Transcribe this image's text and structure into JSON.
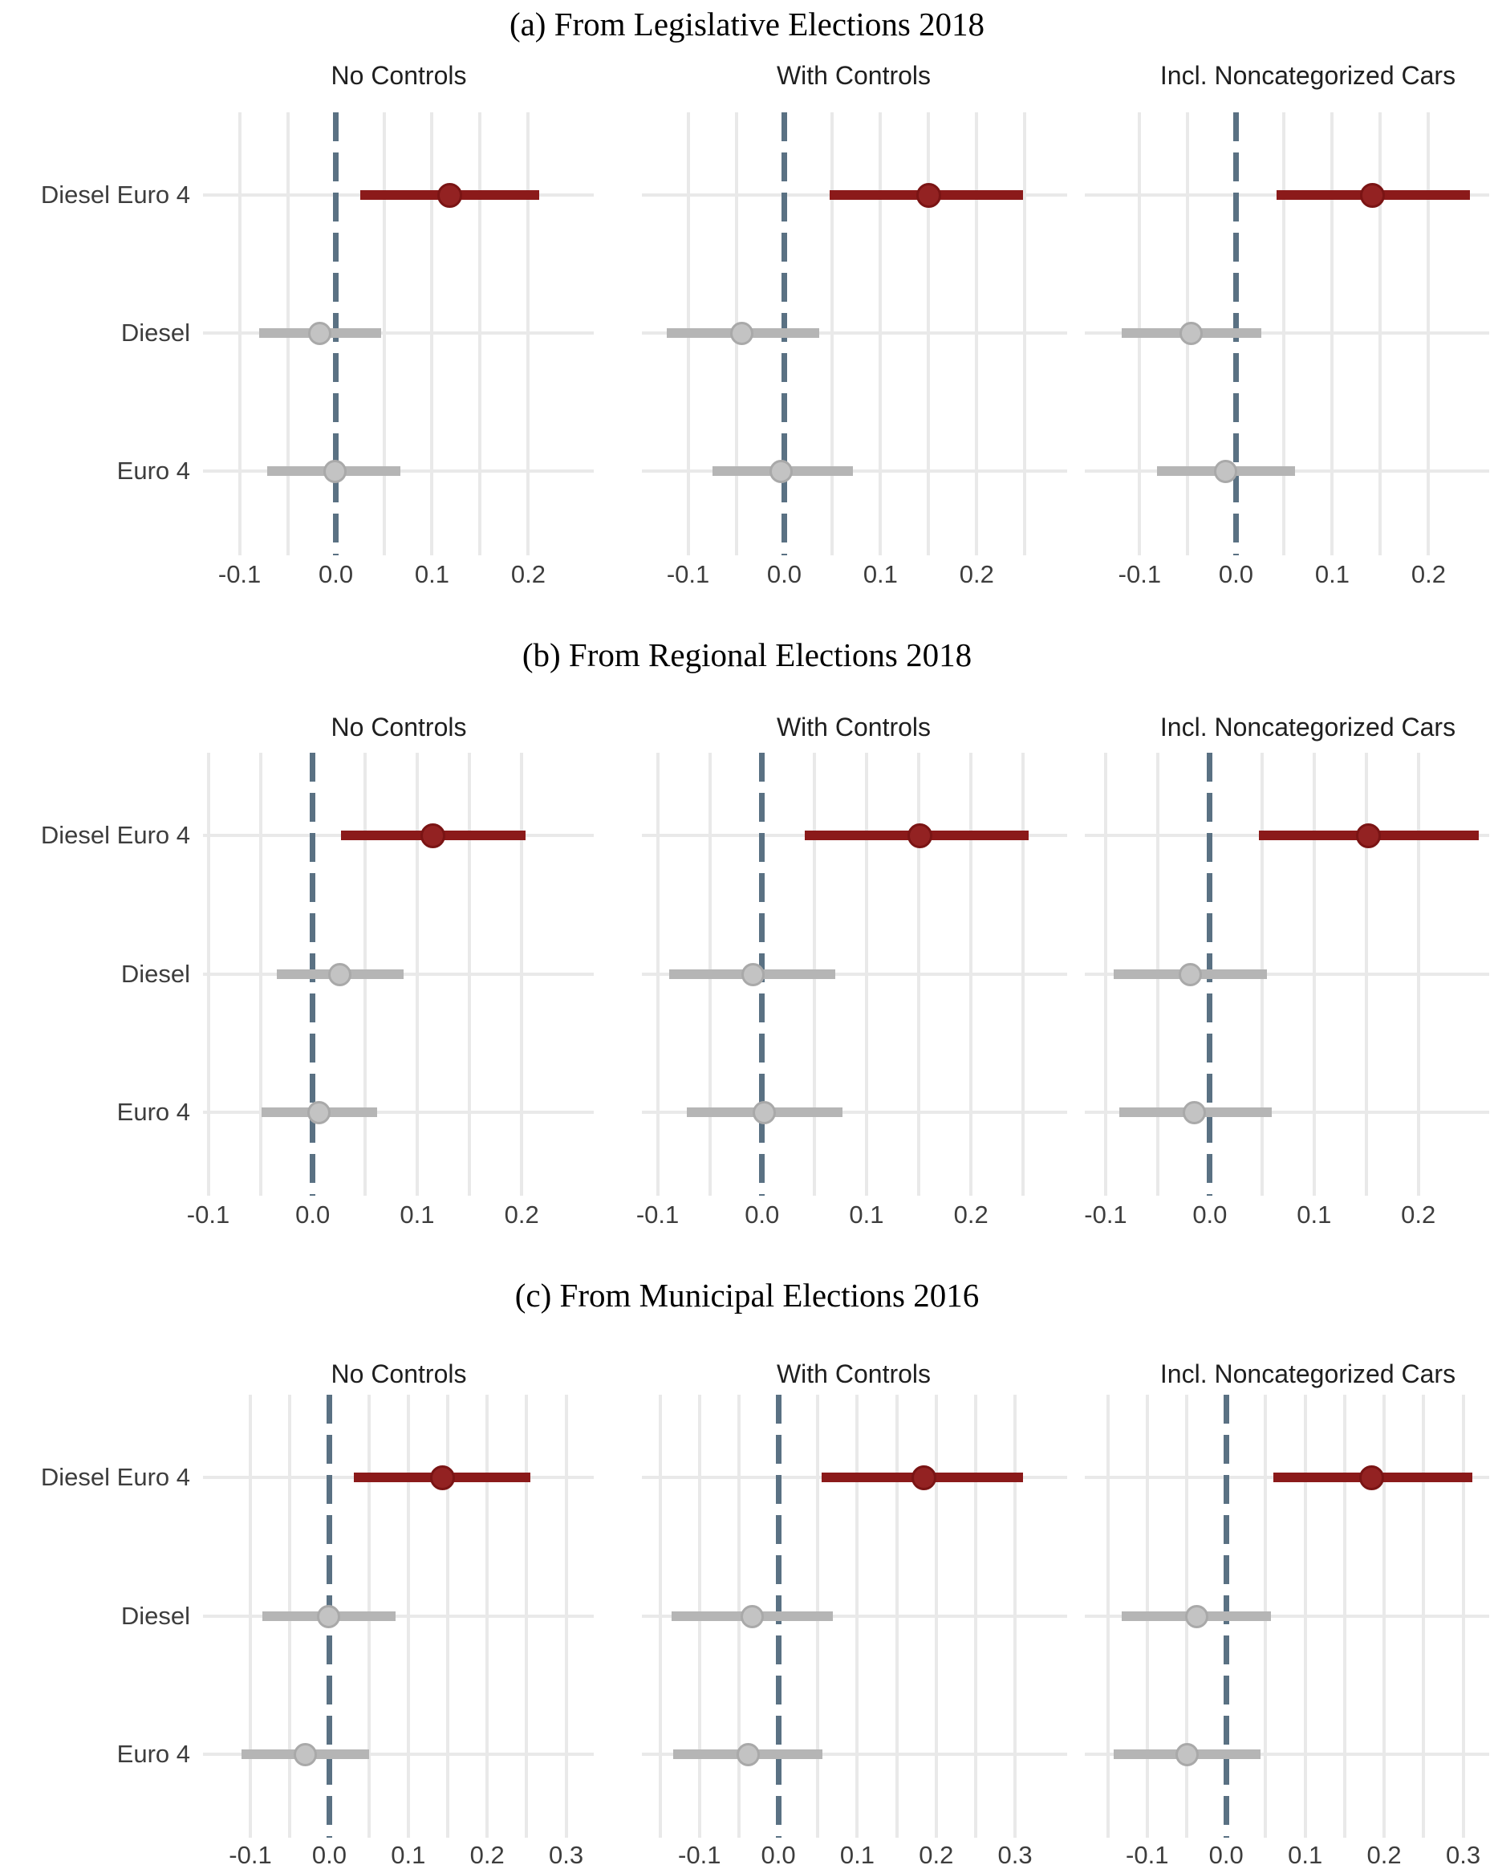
{
  "figure_title_prefixes": [
    "(a)",
    "(b)",
    "(c)"
  ],
  "categories": [
    "Diesel Euro 4",
    "Diesel",
    "Euro 4"
  ],
  "facet_headers": [
    "No Controls",
    "With Controls",
    "Incl. Noncategorized Cars"
  ],
  "colors": {
    "significant": "#8B1A1A",
    "significant_point": "#932222",
    "significant_point_border": "#7A1414",
    "nonsignificant": "#B5B5B5",
    "nonsignificant_point": "#C3C3C3",
    "nonsignificant_point_border": "#A9A9A9",
    "zero_line": "#5A7183",
    "gridline": "#E9E9E9",
    "title_text": "#000000",
    "axis_text": "#3D3D3D",
    "header_text": "#1F1F1F",
    "background": "#FFFFFF"
  },
  "chart_data": [
    {
      "type": "scatter",
      "subtype": "coefficient-forest",
      "title": "(a) From Legislative Elections 2018",
      "categories": [
        "Diesel Euro 4",
        "Diesel",
        "Euro 4"
      ],
      "x_ticks": [
        -0.1,
        0.0,
        0.1,
        0.2
      ],
      "x_tick_labels": [
        "-0.1",
        "0.0",
        "0.1",
        "0.2"
      ],
      "grid": true,
      "legend": "none",
      "zero_reference_line": 0.0,
      "subplots": [
        {
          "header": "No Controls",
          "xlim": [
            -0.138,
            0.268
          ],
          "series": [
            {
              "term": "Diesel Euro 4",
              "estimate": 0.118,
              "ci_low": 0.025,
              "ci_high": 0.211,
              "significant": true
            },
            {
              "term": "Diesel",
              "estimate": -0.017,
              "ci_low": -0.08,
              "ci_high": 0.047,
              "significant": false
            },
            {
              "term": "Euro 4",
              "estimate": -0.001,
              "ci_low": -0.071,
              "ci_high": 0.067,
              "significant": false
            }
          ]
        },
        {
          "header": "With Controls",
          "xlim": [
            -0.148,
            0.294
          ],
          "series": [
            {
              "term": "Diesel Euro 4",
              "estimate": 0.15,
              "ci_low": 0.047,
              "ci_high": 0.248,
              "significant": true
            },
            {
              "term": "Diesel",
              "estimate": -0.044,
              "ci_low": -0.122,
              "ci_high": 0.036,
              "significant": false
            },
            {
              "term": "Euro 4",
              "estimate": -0.003,
              "ci_low": -0.075,
              "ci_high": 0.071,
              "significant": false
            }
          ]
        },
        {
          "header": "Incl. Noncategorized Cars",
          "xlim": [
            -0.157,
            0.263
          ],
          "series": [
            {
              "term": "Diesel Euro 4",
              "estimate": 0.142,
              "ci_low": 0.042,
              "ci_high": 0.243,
              "significant": true
            },
            {
              "term": "Diesel",
              "estimate": -0.047,
              "ci_low": -0.119,
              "ci_high": 0.026,
              "significant": false
            },
            {
              "term": "Euro 4",
              "estimate": -0.011,
              "ci_low": -0.082,
              "ci_high": 0.061,
              "significant": false
            }
          ]
        }
      ]
    },
    {
      "type": "scatter",
      "subtype": "coefficient-forest",
      "title": "(b) From Regional Elections 2018",
      "categories": [
        "Diesel Euro 4",
        "Diesel",
        "Euro 4"
      ],
      "x_ticks": [
        -0.1,
        0.0,
        0.1,
        0.2
      ],
      "x_tick_labels": [
        "-0.1",
        "0.0",
        "0.1",
        "0.2"
      ],
      "grid": true,
      "legend": "none",
      "zero_reference_line": 0.0,
      "subplots": [
        {
          "header": "No Controls",
          "xlim": [
            -0.105,
            0.269
          ],
          "series": [
            {
              "term": "Diesel Euro 4",
              "estimate": 0.115,
              "ci_low": 0.027,
              "ci_high": 0.204,
              "significant": true
            },
            {
              "term": "Diesel",
              "estimate": 0.026,
              "ci_low": -0.034,
              "ci_high": 0.087,
              "significant": false
            },
            {
              "term": "Euro 4",
              "estimate": 0.006,
              "ci_low": -0.049,
              "ci_high": 0.062,
              "significant": false
            }
          ]
        },
        {
          "header": "With Controls",
          "xlim": [
            -0.115,
            0.292
          ],
          "series": [
            {
              "term": "Diesel Euro 4",
              "estimate": 0.151,
              "ci_low": 0.041,
              "ci_high": 0.255,
              "significant": true
            },
            {
              "term": "Diesel",
              "estimate": -0.009,
              "ci_low": -0.089,
              "ci_high": 0.07,
              "significant": false
            },
            {
              "term": "Euro 4",
              "estimate": 0.002,
              "ci_low": -0.072,
              "ci_high": 0.077,
              "significant": false
            }
          ]
        },
        {
          "header": "Incl. Noncategorized Cars",
          "xlim": [
            -0.12,
            0.268
          ],
          "series": [
            {
              "term": "Diesel Euro 4",
              "estimate": 0.152,
              "ci_low": 0.047,
              "ci_high": 0.258,
              "significant": true
            },
            {
              "term": "Diesel",
              "estimate": -0.019,
              "ci_low": -0.092,
              "ci_high": 0.055,
              "significant": false
            },
            {
              "term": "Euro 4",
              "estimate": -0.015,
              "ci_low": -0.087,
              "ci_high": 0.059,
              "significant": false
            }
          ]
        }
      ]
    },
    {
      "type": "scatter",
      "subtype": "coefficient-forest",
      "title": "(c) From Municipal Elections 2016",
      "categories": [
        "Diesel Euro 4",
        "Diesel",
        "Euro 4"
      ],
      "x_ticks": [
        -0.1,
        0.0,
        0.1,
        0.2,
        0.3
      ],
      "x_tick_labels": [
        "-0.1",
        "0.0",
        "0.1",
        "0.2",
        "0.3"
      ],
      "grid": true,
      "legend": "none",
      "zero_reference_line": 0.0,
      "subplots": [
        {
          "header": "No Controls",
          "xlim": [
            -0.16,
            0.335
          ],
          "series": [
            {
              "term": "Diesel Euro 4",
              "estimate": 0.143,
              "ci_low": 0.031,
              "ci_high": 0.255,
              "significant": true
            },
            {
              "term": "Diesel",
              "estimate": -0.001,
              "ci_low": -0.085,
              "ci_high": 0.084,
              "significant": false
            },
            {
              "term": "Euro 4",
              "estimate": -0.03,
              "ci_low": -0.111,
              "ci_high": 0.05,
              "significant": false
            }
          ]
        },
        {
          "header": "With Controls",
          "xlim": [
            -0.173,
            0.366
          ],
          "series": [
            {
              "term": "Diesel Euro 4",
              "estimate": 0.184,
              "ci_low": 0.055,
              "ci_high": 0.31,
              "significant": true
            },
            {
              "term": "Diesel",
              "estimate": -0.033,
              "ci_low": -0.135,
              "ci_high": 0.069,
              "significant": false
            },
            {
              "term": "Euro 4",
              "estimate": -0.038,
              "ci_low": -0.133,
              "ci_high": 0.056,
              "significant": false
            }
          ]
        },
        {
          "header": "Incl. Noncategorized Cars",
          "xlim": [
            -0.179,
            0.333
          ],
          "series": [
            {
              "term": "Diesel Euro 4",
              "estimate": 0.184,
              "ci_low": 0.06,
              "ci_high": 0.312,
              "significant": true
            },
            {
              "term": "Diesel",
              "estimate": -0.037,
              "ci_low": -0.132,
              "ci_high": 0.057,
              "significant": false
            },
            {
              "term": "Euro 4",
              "estimate": -0.049,
              "ci_low": -0.142,
              "ci_high": 0.043,
              "significant": false
            }
          ]
        }
      ]
    }
  ]
}
